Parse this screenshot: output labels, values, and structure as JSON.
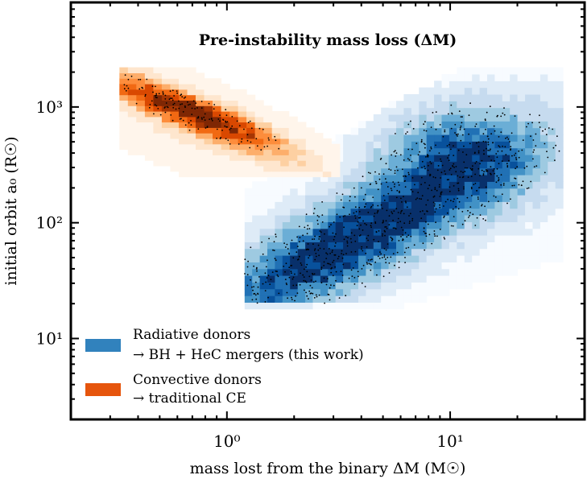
{
  "chart_data": {
    "type": "heatmap",
    "title": "Pre-instability mass loss (ΔM)",
    "xlabel": "mass lost from the binary ΔM (M☉)",
    "ylabel": "initial orbit a₀ (R☉)",
    "x_scale": "log",
    "y_scale": "log",
    "xlim": [
      0.2,
      40
    ],
    "ylim": [
      2,
      8000
    ],
    "x_ticks": [
      {
        "value": 1,
        "label": "10⁰"
      },
      {
        "value": 10,
        "label": "10¹"
      }
    ],
    "y_ticks": [
      {
        "value": 10,
        "label": "10¹"
      },
      {
        "value": 100,
        "label": "10²"
      },
      {
        "value": 1000,
        "label": "10³"
      }
    ],
    "legend_position": "lower-left",
    "series": [
      {
        "name": "Radiative donors",
        "label_line1": "Radiative donors",
        "label_line2": "→ BH + HeC mergers (this work)",
        "color": "#3182bd",
        "colormap": [
          "#f7fbff",
          "#deebf7",
          "#c6dbef",
          "#9ecae1",
          "#6baed6",
          "#4292c6",
          "#2171b5",
          "#08519c",
          "#08306b"
        ],
        "x_range": [
          1.2,
          32
        ],
        "y_range": [
          18,
          2200
        ],
        "density_model": "concentrated near lower-left edge (dM~2-4, a0~30-80), extending diagonally to dM~25, a0~1500"
      },
      {
        "name": "Convective donors",
        "label_line1": "Convective donors",
        "label_line2": "→ traditional CE",
        "color": "#e6550d",
        "colormap": [
          "#fff5eb",
          "#fee6ce",
          "#fdd0a2",
          "#fdae6b",
          "#fd8d3c",
          "#f16913",
          "#d94801",
          "#a63603",
          "#7f2704"
        ],
        "x_range": [
          0.33,
          3.2
        ],
        "y_range": [
          250,
          2200
        ],
        "density_model": "narrow diagonal band from (dM~0.35, a0~1500) to (dM~1.1, a0~600)"
      }
    ]
  }
}
